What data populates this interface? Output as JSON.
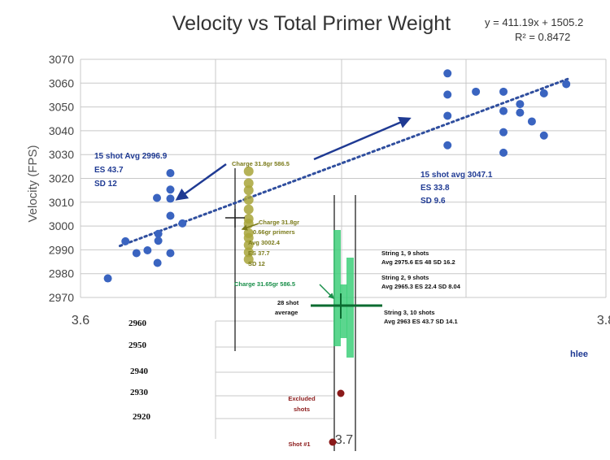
{
  "chart_data": {
    "type": "scatter",
    "title": "Velocity vs Total Primer Weight",
    "equation": "y = 411.19x + 1505.2",
    "r_squared": "R² = 0.8472",
    "ylabel": "Velocity (FPS)",
    "xlabel": "",
    "xlim": [
      3.6,
      3.8
    ],
    "ylim": [
      2970,
      3070
    ],
    "y_ticks": [
      "3070",
      "3060",
      "3050",
      "3040",
      "3030",
      "3020",
      "3010",
      "3000",
      "2990",
      "2980",
      "2970"
    ],
    "x_tick_labels": [
      "3.6",
      "3.8"
    ],
    "x_tick_values": [
      3.6,
      3.8
    ],
    "grid": true,
    "series": [
      {
        "color": "#3a64c0",
        "points": [
          [
            3.6104,
            2978
          ],
          [
            3.6171,
            2993.6
          ],
          [
            3.6213,
            2988.6
          ],
          [
            3.6255,
            2989.8
          ],
          [
            3.6293,
            2984.5
          ],
          [
            3.6296,
            2993.8
          ],
          [
            3.6296,
            2996.7
          ],
          [
            3.6291,
            3011.8
          ],
          [
            3.6342,
            2988.6
          ],
          [
            3.6342,
            3004.3
          ],
          [
            3.6342,
            3011.5
          ],
          [
            3.6342,
            3015.3
          ],
          [
            3.6342,
            3022.2
          ],
          [
            3.6388,
            3001.1
          ],
          [
            3.7397,
            3033.9
          ],
          [
            3.7397,
            3046.3
          ],
          [
            3.7397,
            3055.2
          ],
          [
            3.7397,
            3064.1
          ],
          [
            3.7505,
            3056.4
          ],
          [
            3.761,
            3030.8
          ],
          [
            3.761,
            3039.4
          ],
          [
            3.761,
            3048.3
          ],
          [
            3.761,
            3056.4
          ],
          [
            3.7673,
            3047.6
          ],
          [
            3.7673,
            3051.2
          ],
          [
            3.7718,
            3043.9
          ],
          [
            3.7764,
            3038.0
          ],
          [
            3.7764,
            3055.7
          ],
          [
            3.7849,
            3059.6
          ]
        ]
      }
    ],
    "charge_points": {
      "color": "#a8a43a",
      "x": 3.664,
      "values": [
        2986,
        2989,
        2992,
        2995,
        2997,
        3001,
        3003,
        3007,
        3011,
        3015,
        3018,
        3023
      ]
    },
    "trendline": {
      "slope": 411.19,
      "intercept": 1505.2,
      "x_from": 3.615,
      "x_to": 3.786,
      "color": "#2f4e9e"
    },
    "lower_scale_labels": [
      "2960",
      "2950",
      "2940",
      "2930",
      "2920"
    ],
    "lower_x_label": "3.7",
    "excluded_points": [
      2930,
      2915
    ],
    "annotations": {
      "left_group": [
        "15 shot Avg 2996.9",
        "ES 43.7",
        "SD 12"
      ],
      "right_group": [
        "15 shot avg 3047.1",
        "ES 33.8",
        "SD 9.6"
      ],
      "charge_top": "Charge 31.8gr 586.5",
      "charge_mid": [
        "Charge 31.8gr",
        "0.66gr primers",
        "Avg 3002.4",
        "ES 37.7",
        "SD 12"
      ],
      "charge_low": "Charge 31.65gr 586.5",
      "avg_label": [
        "28 shot",
        "average"
      ],
      "string1": [
        "String 1, 9 shots",
        "Avg 2975.6  ES 48  SD 16.2"
      ],
      "string2": [
        "String 2, 9 shots",
        "Avg 2965.3  ES 22.4  SD 8.04"
      ],
      "string3": [
        "String 3, 10 shots",
        "Avg 2963   ES 43.7  SD 14.1"
      ],
      "excluded": [
        "Excluded",
        "shots"
      ],
      "shot1": "Shot #1",
      "author": "hlee"
    },
    "colors": {
      "blue_points": "#3a64c0",
      "olive_points": "#a8a43a",
      "green_bars": "#3ecf7a",
      "arrow": "#1f3a93",
      "excluded": "#8b1a1a"
    }
  }
}
